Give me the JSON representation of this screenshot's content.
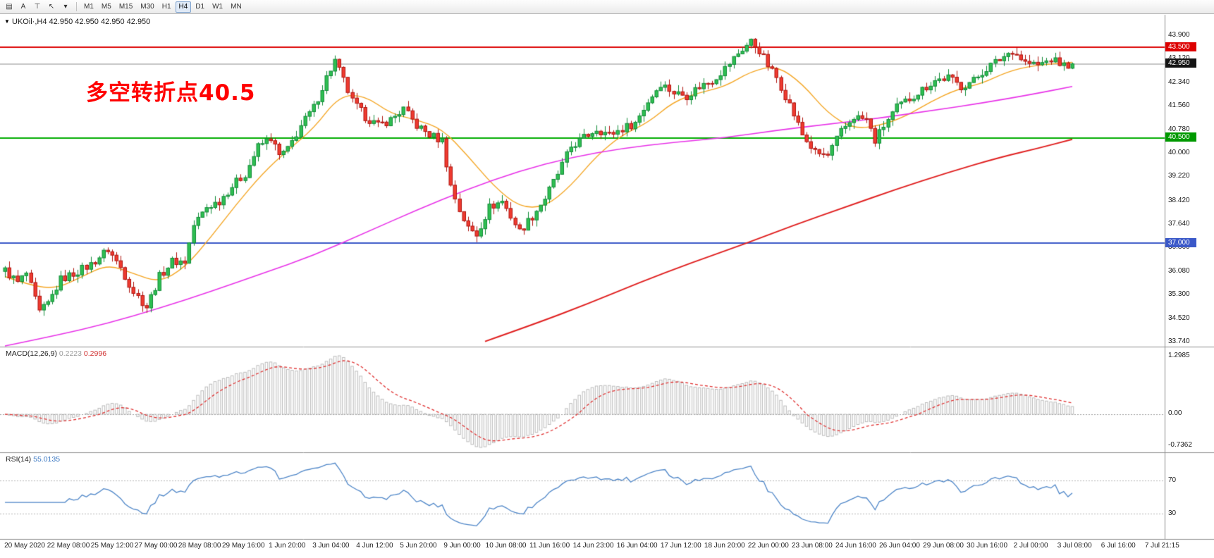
{
  "toolbar": {
    "tools": [
      {
        "name": "chart-list-icon",
        "glyph": "▤"
      },
      {
        "name": "text-tool-button",
        "glyph": "A"
      },
      {
        "name": "drawing-tool-icon",
        "glyph": "⊤"
      },
      {
        "name": "cursor-tool-icon",
        "glyph": "↖"
      },
      {
        "name": "tools-dropdown-icon",
        "glyph": "▾"
      }
    ],
    "timeframes": [
      {
        "label": "M1",
        "active": false
      },
      {
        "label": "M5",
        "active": false
      },
      {
        "label": "M15",
        "active": false
      },
      {
        "label": "M30",
        "active": false
      },
      {
        "label": "H1",
        "active": false
      },
      {
        "label": "H4",
        "active": true
      },
      {
        "label": "D1",
        "active": false
      },
      {
        "label": "W1",
        "active": false
      },
      {
        "label": "MN",
        "active": false
      }
    ]
  },
  "chart": {
    "collapse_glyph": "▼",
    "symbol_label": "UKOil·,H4 42.950 42.950 42.950 42.950",
    "annotation": {
      "text": "多空转折点40.5",
      "color": "#ff0000"
    }
  },
  "price_axis": {
    "ticks": [
      {
        "label": "43.900",
        "value": 43.9
      },
      {
        "label": "43.120",
        "value": 43.12
      },
      {
        "label": "42.340",
        "value": 42.34
      },
      {
        "label": "41.560",
        "value": 41.56
      },
      {
        "label": "40.780",
        "value": 40.78
      },
      {
        "label": "40.000",
        "value": 40.0
      },
      {
        "label": "39.220",
        "value": 39.22
      },
      {
        "label": "38.420",
        "value": 38.42
      },
      {
        "label": "37.640",
        "value": 37.64
      },
      {
        "label": "36.860",
        "value": 36.86
      },
      {
        "label": "36.080",
        "value": 36.08
      },
      {
        "label": "35.300",
        "value": 35.3
      },
      {
        "label": "34.520",
        "value": 34.52
      },
      {
        "label": "33.740",
        "value": 33.74
      }
    ],
    "badges": [
      {
        "label": "43.500",
        "value": 43.5,
        "color": "#dd0000",
        "name": "resistance-line-badge"
      },
      {
        "label": "42.950",
        "value": 42.95,
        "color": "#141414",
        "name": "current-price-badge"
      },
      {
        "label": "40.500",
        "value": 40.5,
        "color": "#009900",
        "name": "pivot-line-badge"
      },
      {
        "label": "37.000",
        "value": 37.0,
        "color": "#3a58c8",
        "name": "support-line-badge"
      }
    ]
  },
  "chart_data": {
    "type": "candlestick",
    "symbol": "UKOil",
    "timeframe": "H4",
    "current_price": 42.95,
    "price_range": [
      33.74,
      43.9
    ],
    "candle_count": 250,
    "wiggle": 0.14,
    "up_color": "#128c38",
    "up_fill": "#2fbf52",
    "down_color": "#b01510",
    "down_fill": "#ef3b30",
    "close_waypoints": [
      [
        0,
        36.1
      ],
      [
        3,
        35.7
      ],
      [
        5,
        36.0
      ],
      [
        8,
        34.7
      ],
      [
        10,
        35.0
      ],
      [
        13,
        35.8
      ],
      [
        16,
        36.0
      ],
      [
        20,
        36.3
      ],
      [
        24,
        36.8
      ],
      [
        27,
        36.2
      ],
      [
        30,
        35.4
      ],
      [
        33,
        34.9
      ],
      [
        36,
        35.9
      ],
      [
        39,
        36.4
      ],
      [
        42,
        36.4
      ],
      [
        44,
        37.6
      ],
      [
        47,
        38.2
      ],
      [
        50,
        38.4
      ],
      [
        53,
        38.9
      ],
      [
        56,
        39.3
      ],
      [
        59,
        40.2
      ],
      [
        62,
        40.5
      ],
      [
        64,
        39.9
      ],
      [
        66,
        40.1
      ],
      [
        69,
        40.9
      ],
      [
        72,
        41.5
      ],
      [
        75,
        42.5
      ],
      [
        77,
        43.05
      ],
      [
        79,
        42.4
      ],
      [
        81,
        41.7
      ],
      [
        84,
        41.2
      ],
      [
        87,
        40.9
      ],
      [
        90,
        41.1
      ],
      [
        93,
        41.45
      ],
      [
        96,
        40.9
      ],
      [
        99,
        40.6
      ],
      [
        102,
        40.4
      ],
      [
        104,
        38.9
      ],
      [
        106,
        38.1
      ],
      [
        108,
        37.5
      ],
      [
        110,
        37.3
      ],
      [
        113,
        38.2
      ],
      [
        116,
        38.4
      ],
      [
        118,
        37.9
      ],
      [
        120,
        37.4
      ],
      [
        123,
        37.9
      ],
      [
        126,
        38.5
      ],
      [
        129,
        39.3
      ],
      [
        132,
        40.2
      ],
      [
        135,
        40.5
      ],
      [
        138,
        40.8
      ],
      [
        141,
        40.6
      ],
      [
        144,
        40.8
      ],
      [
        147,
        41.0
      ],
      [
        150,
        41.7
      ],
      [
        153,
        42.3
      ],
      [
        156,
        42.0
      ],
      [
        159,
        41.9
      ],
      [
        162,
        42.2
      ],
      [
        165,
        42.4
      ],
      [
        168,
        42.8
      ],
      [
        171,
        43.3
      ],
      [
        174,
        43.7
      ],
      [
        176,
        43.4
      ],
      [
        178,
        42.9
      ],
      [
        180,
        42.5
      ],
      [
        183,
        41.6
      ],
      [
        186,
        40.6
      ],
      [
        189,
        40.0
      ],
      [
        192,
        39.9
      ],
      [
        195,
        40.7
      ],
      [
        198,
        41.2
      ],
      [
        201,
        41.1
      ],
      [
        203,
        40.4
      ],
      [
        205,
        40.9
      ],
      [
        208,
        41.5
      ],
      [
        211,
        41.8
      ],
      [
        214,
        42.1
      ],
      [
        217,
        42.4
      ],
      [
        220,
        42.5
      ],
      [
        223,
        42.2
      ],
      [
        226,
        42.4
      ],
      [
        229,
        42.8
      ],
      [
        232,
        43.1
      ],
      [
        235,
        43.4
      ],
      [
        238,
        43.0
      ],
      [
        241,
        42.9
      ],
      [
        244,
        43.1
      ],
      [
        247,
        42.9
      ],
      [
        249,
        42.95
      ]
    ],
    "horizontal_levels": [
      {
        "price": 43.5,
        "color": "#dd0000",
        "width": 2,
        "label": "43.500",
        "role": "resistance"
      },
      {
        "price": 42.95,
        "color": "#8a8a8a",
        "width": 1,
        "label": "42.950",
        "role": "current-price"
      },
      {
        "price": 40.5,
        "color": "#00ad00",
        "width": 2,
        "label": "40.500",
        "role": "pivot"
      },
      {
        "price": 37.0,
        "color": "#3a58c8",
        "width": 2,
        "label": "37.000",
        "role": "support"
      }
    ],
    "moving_averages": [
      {
        "name": "ma-fast-orange",
        "color": "#f5a623",
        "width": 1.4,
        "points": [
          [
            0,
            35.9
          ],
          [
            6,
            35.6
          ],
          [
            12,
            35.5
          ],
          [
            18,
            35.9
          ],
          [
            24,
            36.3
          ],
          [
            30,
            36.0
          ],
          [
            36,
            35.7
          ],
          [
            42,
            36.2
          ],
          [
            48,
            37.2
          ],
          [
            54,
            38.3
          ],
          [
            60,
            39.3
          ],
          [
            66,
            40.1
          ],
          [
            72,
            40.8
          ],
          [
            78,
            41.9
          ],
          [
            84,
            41.9
          ],
          [
            90,
            41.3
          ],
          [
            96,
            41.1
          ],
          [
            102,
            40.8
          ],
          [
            108,
            39.9
          ],
          [
            114,
            38.9
          ],
          [
            120,
            38.2
          ],
          [
            126,
            38.2
          ],
          [
            132,
            38.9
          ],
          [
            138,
            39.9
          ],
          [
            144,
            40.6
          ],
          [
            150,
            41.0
          ],
          [
            156,
            41.7
          ],
          [
            162,
            42.0
          ],
          [
            168,
            42.2
          ],
          [
            174,
            42.7
          ],
          [
            180,
            42.9
          ],
          [
            186,
            42.3
          ],
          [
            192,
            41.3
          ],
          [
            198,
            40.8
          ],
          [
            204,
            40.9
          ],
          [
            210,
            41.2
          ],
          [
            216,
            41.7
          ],
          [
            222,
            42.1
          ],
          [
            228,
            42.3
          ],
          [
            234,
            42.7
          ],
          [
            240,
            42.9
          ],
          [
            249,
            43.0
          ]
        ]
      },
      {
        "name": "ma-medium-magenta",
        "color": "#e832e8",
        "width": 1.6,
        "points": [
          [
            0,
            33.6
          ],
          [
            12,
            33.95
          ],
          [
            24,
            34.35
          ],
          [
            36,
            34.85
          ],
          [
            48,
            35.4
          ],
          [
            60,
            36.0
          ],
          [
            72,
            36.6
          ],
          [
            84,
            37.35
          ],
          [
            96,
            38.1
          ],
          [
            108,
            38.8
          ],
          [
            120,
            39.4
          ],
          [
            132,
            39.85
          ],
          [
            144,
            40.15
          ],
          [
            156,
            40.35
          ],
          [
            168,
            40.5
          ],
          [
            180,
            40.75
          ],
          [
            192,
            40.95
          ],
          [
            204,
            41.15
          ],
          [
            216,
            41.4
          ],
          [
            228,
            41.65
          ],
          [
            240,
            41.95
          ],
          [
            249,
            42.2
          ]
        ]
      },
      {
        "name": "ma-slow-red",
        "color": "#e02020",
        "width": 2,
        "points": [
          [
            112,
            33.75
          ],
          [
            124,
            34.35
          ],
          [
            136,
            35.0
          ],
          [
            148,
            35.7
          ],
          [
            160,
            36.35
          ],
          [
            172,
            36.95
          ],
          [
            184,
            37.6
          ],
          [
            196,
            38.2
          ],
          [
            208,
            38.8
          ],
          [
            220,
            39.35
          ],
          [
            232,
            39.85
          ],
          [
            241,
            40.15
          ],
          [
            249,
            40.45
          ]
        ]
      }
    ]
  },
  "macd": {
    "label": "MACD(12,26,9)",
    "value1": "0.2223",
    "value2": "0.2996",
    "histogram_color": "#bcbcbc",
    "signal_color": "#e03030",
    "axis": {
      "max_label": "1.2985",
      "zero_label": "0.00",
      "min_label": "-0.7362",
      "max": 1.2985,
      "min": -0.7362
    }
  },
  "rsi": {
    "label": "RSI(14)",
    "value": "55.0135",
    "line_color": "#4e86c8",
    "levels": [
      {
        "label": "70",
        "value": 70
      },
      {
        "label": "30",
        "value": 30
      }
    ]
  },
  "time_axis": {
    "labels": [
      "20 May 2020",
      "22 May 08:00",
      "25 May 12:00",
      "27 May 00:00",
      "28 May 08:00",
      "29 May 16:00",
      "1 Jun 20:00",
      "3 Jun 04:00",
      "4 Jun 12:00",
      "5 Jun 20:00",
      "9 Jun 00:00",
      "10 Jun 08:00",
      "11 Jun 16:00",
      "14 Jun 23:00",
      "16 Jun 04:00",
      "17 Jun 12:00",
      "18 Jun 20:00",
      "22 Jun 00:00",
      "23 Jun 08:00",
      "24 Jun 16:00",
      "26 Jun 04:00",
      "29 Jun 08:00",
      "30 Jun 16:00",
      "2 Jul 00:00",
      "3 Jul 08:00",
      "6 Jul 16:00",
      "7 Jul 21:15"
    ]
  }
}
